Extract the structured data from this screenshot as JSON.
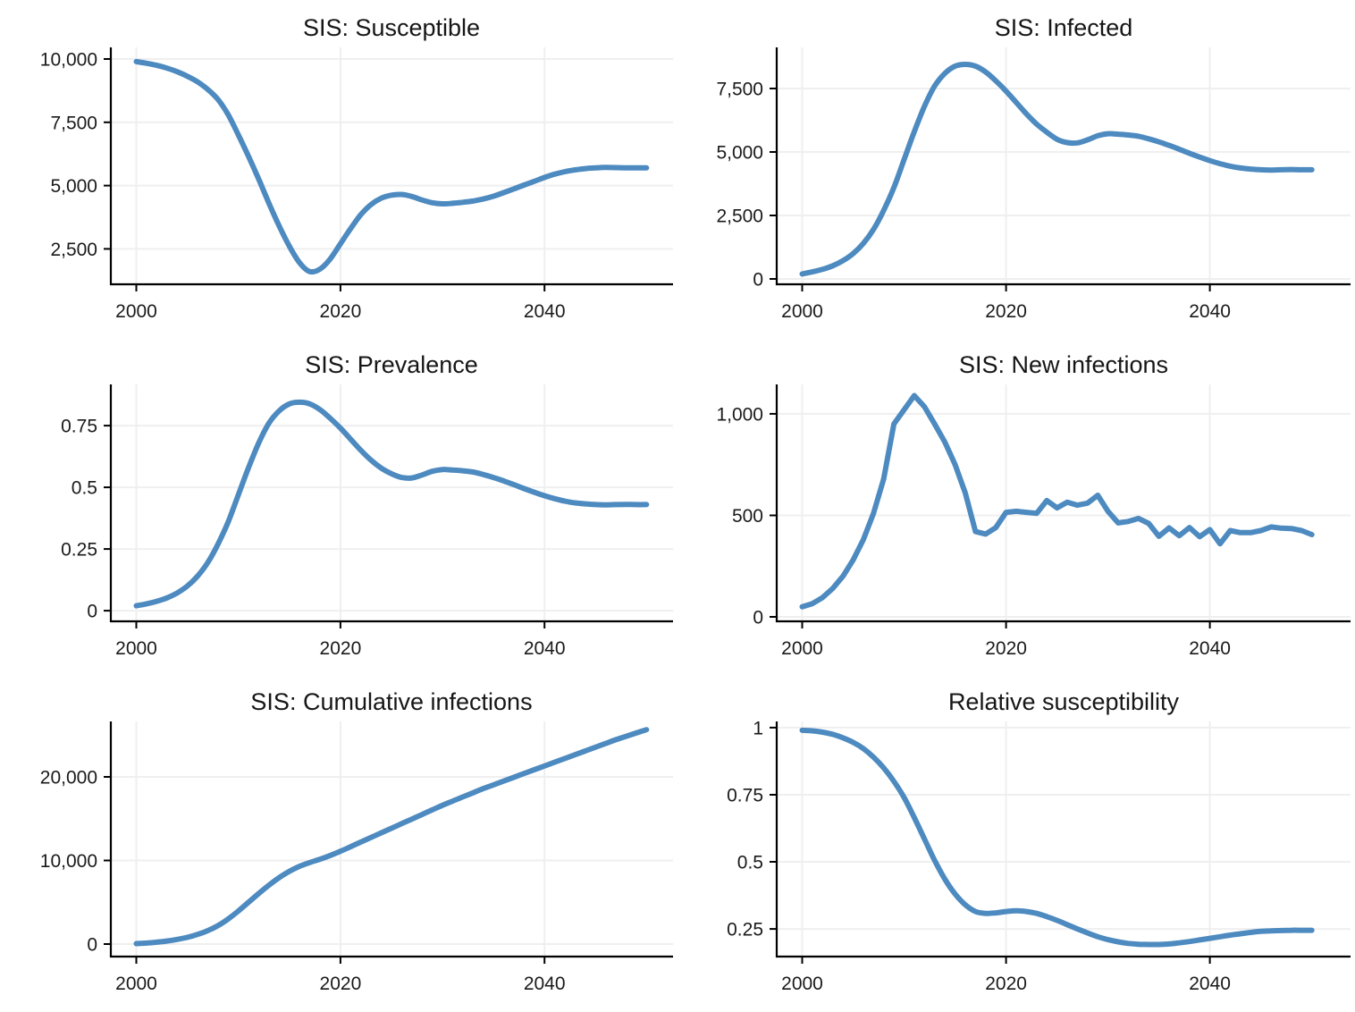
{
  "figure": {
    "background": "#ffffff",
    "accent_color": "#4d8ac0",
    "grid_color": "#efefef",
    "spine_color": "#000000",
    "text_color": "#161616"
  },
  "chart_data": [
    {
      "type": "line",
      "title": "SIS: Susceptible",
      "xlabel": "",
      "ylabel": "",
      "grid": true,
      "legend": "none",
      "smooth": true,
      "xlim": [
        1997.5,
        2052.6
      ],
      "ylim": [
        1100,
        10460
      ],
      "xticks": [
        {
          "value": 2000,
          "label": "2000"
        },
        {
          "value": 2020,
          "label": "2020"
        },
        {
          "value": 2040,
          "label": "2040"
        }
      ],
      "yticks": [
        {
          "value": 2500,
          "label": "2,500"
        },
        {
          "value": 5000,
          "label": "5,000"
        },
        {
          "value": 7500,
          "label": "7,500"
        },
        {
          "value": 10000,
          "label": "10,000"
        }
      ],
      "series": [
        {
          "name": "Susceptible",
          "x": [
            2000,
            2001,
            2002,
            2003,
            2004,
            2005,
            2006,
            2007,
            2008,
            2009,
            2010,
            2011,
            2012,
            2013,
            2014,
            2015,
            2016,
            2017,
            2018,
            2019,
            2020,
            2021,
            2022,
            2023,
            2024,
            2025,
            2026,
            2027,
            2028,
            2029,
            2030,
            2031,
            2032,
            2033,
            2034,
            2035,
            2036,
            2037,
            2038,
            2039,
            2040,
            2041,
            2042,
            2043,
            2044,
            2045,
            2046,
            2047,
            2048,
            2049,
            2050
          ],
          "y": [
            9900,
            9830,
            9750,
            9640,
            9500,
            9320,
            9100,
            8800,
            8400,
            7800,
            7000,
            6150,
            5250,
            4300,
            3400,
            2600,
            1950,
            1600,
            1700,
            2100,
            2700,
            3300,
            3850,
            4250,
            4500,
            4620,
            4650,
            4570,
            4430,
            4320,
            4280,
            4300,
            4340,
            4390,
            4470,
            4580,
            4720,
            4870,
            5020,
            5170,
            5320,
            5450,
            5550,
            5620,
            5670,
            5700,
            5720,
            5710,
            5700,
            5700,
            5700
          ]
        }
      ]
    },
    {
      "type": "line",
      "title": "SIS: Infected",
      "xlabel": "",
      "ylabel": "",
      "grid": true,
      "legend": "none",
      "smooth": true,
      "xlim": [
        1997.5,
        2053.8
      ],
      "ylim": [
        -210,
        9120
      ],
      "xticks": [
        {
          "value": 2000,
          "label": "2000"
        },
        {
          "value": 2020,
          "label": "2020"
        },
        {
          "value": 2040,
          "label": "2040"
        }
      ],
      "yticks": [
        {
          "value": 0,
          "label": "0"
        },
        {
          "value": 2500,
          "label": "2,500"
        },
        {
          "value": 5000,
          "label": "5,000"
        },
        {
          "value": 7500,
          "label": "7,500"
        }
      ],
      "series": [
        {
          "name": "Infected",
          "x": [
            2000,
            2001,
            2002,
            2003,
            2004,
            2005,
            2006,
            2007,
            2008,
            2009,
            2010,
            2011,
            2012,
            2013,
            2014,
            2015,
            2016,
            2017,
            2018,
            2019,
            2020,
            2021,
            2022,
            2023,
            2024,
            2025,
            2026,
            2027,
            2028,
            2029,
            2030,
            2031,
            2032,
            2033,
            2034,
            2035,
            2036,
            2037,
            2038,
            2039,
            2040,
            2041,
            2042,
            2043,
            2044,
            2045,
            2046,
            2047,
            2048,
            2049,
            2050
          ],
          "y": [
            200,
            280,
            380,
            520,
            720,
            1000,
            1400,
            1950,
            2700,
            3600,
            4700,
            5800,
            6800,
            7600,
            8100,
            8380,
            8450,
            8380,
            8150,
            7800,
            7400,
            6950,
            6500,
            6100,
            5780,
            5500,
            5370,
            5360,
            5480,
            5640,
            5720,
            5700,
            5670,
            5620,
            5520,
            5400,
            5260,
            5110,
            4950,
            4800,
            4660,
            4540,
            4440,
            4370,
            4330,
            4300,
            4290,
            4300,
            4310,
            4300,
            4300
          ]
        }
      ]
    },
    {
      "type": "line",
      "title": "SIS: Prevalence",
      "xlabel": "",
      "ylabel": "",
      "grid": true,
      "legend": "none",
      "smooth": true,
      "xlim": [
        1997.5,
        2052.6
      ],
      "ylim": [
        -0.043,
        0.917
      ],
      "xticks": [
        {
          "value": 2000,
          "label": "2000"
        },
        {
          "value": 2020,
          "label": "2020"
        },
        {
          "value": 2040,
          "label": "2040"
        }
      ],
      "yticks": [
        {
          "value": 0,
          "label": "0"
        },
        {
          "value": 0.25,
          "label": "0.25"
        },
        {
          "value": 0.5,
          "label": "0.5"
        },
        {
          "value": 0.75,
          "label": "0.75"
        }
      ],
      "series": [
        {
          "name": "Prevalence",
          "x": [
            2000,
            2001,
            2002,
            2003,
            2004,
            2005,
            2006,
            2007,
            2008,
            2009,
            2010,
            2011,
            2012,
            2013,
            2014,
            2015,
            2016,
            2017,
            2018,
            2019,
            2020,
            2021,
            2022,
            2023,
            2024,
            2025,
            2026,
            2027,
            2028,
            2029,
            2030,
            2031,
            2032,
            2033,
            2034,
            2035,
            2036,
            2037,
            2038,
            2039,
            2040,
            2041,
            2042,
            2043,
            2044,
            2045,
            2046,
            2047,
            2048,
            2049,
            2050
          ],
          "y": [
            0.02,
            0.028,
            0.038,
            0.052,
            0.072,
            0.1,
            0.14,
            0.195,
            0.27,
            0.36,
            0.47,
            0.58,
            0.68,
            0.76,
            0.81,
            0.838,
            0.845,
            0.838,
            0.815,
            0.78,
            0.74,
            0.695,
            0.65,
            0.61,
            0.578,
            0.555,
            0.54,
            0.538,
            0.55,
            0.565,
            0.572,
            0.57,
            0.567,
            0.562,
            0.552,
            0.54,
            0.526,
            0.511,
            0.495,
            0.48,
            0.466,
            0.454,
            0.444,
            0.437,
            0.433,
            0.43,
            0.429,
            0.43,
            0.431,
            0.43,
            0.43
          ]
        }
      ]
    },
    {
      "type": "line",
      "title": "SIS: New infections",
      "xlabel": "",
      "ylabel": "",
      "grid": true,
      "legend": "none",
      "smooth": false,
      "xlim": [
        1997.5,
        2053.8
      ],
      "ylim": [
        -22,
        1145
      ],
      "xticks": [
        {
          "value": 2000,
          "label": "2000"
        },
        {
          "value": 2020,
          "label": "2020"
        },
        {
          "value": 2040,
          "label": "2040"
        }
      ],
      "yticks": [
        {
          "value": 0,
          "label": "0"
        },
        {
          "value": 500,
          "label": "500"
        },
        {
          "value": 1000,
          "label": "1,000"
        }
      ],
      "series": [
        {
          "name": "New infections",
          "x": [
            2000,
            2001,
            2002,
            2003,
            2004,
            2005,
            2006,
            2007,
            2008,
            2009,
            2010,
            2011,
            2012,
            2013,
            2014,
            2015,
            2016,
            2017,
            2018,
            2019,
            2020,
            2021,
            2022,
            2023,
            2024,
            2025,
            2026,
            2027,
            2028,
            2029,
            2030,
            2031,
            2032,
            2033,
            2034,
            2035,
            2036,
            2037,
            2038,
            2039,
            2040,
            2041,
            2042,
            2043,
            2044,
            2045,
            2046,
            2047,
            2048,
            2049,
            2050
          ],
          "y": [
            50,
            65,
            95,
            140,
            200,
            280,
            380,
            510,
            680,
            950,
            1020,
            1090,
            1035,
            950,
            860,
            750,
            610,
            420,
            408,
            440,
            515,
            520,
            515,
            510,
            573,
            537,
            565,
            550,
            560,
            599,
            520,
            463,
            470,
            485,
            460,
            397,
            438,
            400,
            440,
            395,
            430,
            360,
            425,
            415,
            415,
            425,
            443,
            437,
            435,
            425,
            405
          ]
        }
      ]
    },
    {
      "type": "line",
      "title": "SIS: Cumulative infections",
      "xlabel": "",
      "ylabel": "",
      "grid": true,
      "legend": "none",
      "smooth": true,
      "xlim": [
        1997.5,
        2052.6
      ],
      "ylim": [
        -1500,
        26630
      ],
      "xticks": [
        {
          "value": 2000,
          "label": "2000"
        },
        {
          "value": 2020,
          "label": "2020"
        },
        {
          "value": 2040,
          "label": "2040"
        }
      ],
      "yticks": [
        {
          "value": 0,
          "label": "0"
        },
        {
          "value": 10000,
          "label": "10,000"
        },
        {
          "value": 20000,
          "label": "20,000"
        }
      ],
      "series": [
        {
          "name": "Cumulative infections",
          "x": [
            2000,
            2001,
            2002,
            2003,
            2004,
            2005,
            2006,
            2007,
            2008,
            2009,
            2010,
            2011,
            2012,
            2013,
            2014,
            2015,
            2016,
            2017,
            2018,
            2019,
            2020,
            2021,
            2022,
            2023,
            2024,
            2025,
            2026,
            2027,
            2028,
            2029,
            2030,
            2031,
            2032,
            2033,
            2034,
            2035,
            2036,
            2037,
            2038,
            2039,
            2040,
            2041,
            2042,
            2043,
            2044,
            2045,
            2046,
            2047,
            2048,
            2049,
            2050
          ],
          "y": [
            50,
            120,
            220,
            360,
            550,
            800,
            1150,
            1600,
            2200,
            3000,
            3950,
            5000,
            6050,
            7050,
            7950,
            8700,
            9300,
            9750,
            10150,
            10600,
            11100,
            11650,
            12200,
            12750,
            13300,
            13850,
            14400,
            14950,
            15500,
            16050,
            16600,
            17100,
            17600,
            18100,
            18600,
            19050,
            19500,
            19950,
            20400,
            20850,
            21300,
            21750,
            22200,
            22650,
            23100,
            23550,
            24000,
            24450,
            24850,
            25250,
            25650
          ]
        }
      ]
    },
    {
      "type": "line",
      "title": "Relative susceptibility",
      "xlabel": "",
      "ylabel": "",
      "grid": true,
      "legend": "none",
      "smooth": true,
      "xlim": [
        1997.5,
        2053.8
      ],
      "ylim": [
        0.147,
        1.023
      ],
      "xticks": [
        {
          "value": 2000,
          "label": "2000"
        },
        {
          "value": 2020,
          "label": "2020"
        },
        {
          "value": 2040,
          "label": "2040"
        }
      ],
      "yticks": [
        {
          "value": 0.25,
          "label": "0.25"
        },
        {
          "value": 0.5,
          "label": "0.5"
        },
        {
          "value": 0.75,
          "label": "0.75"
        },
        {
          "value": 1,
          "label": "1"
        }
      ],
      "series": [
        {
          "name": "Relative susceptibility",
          "x": [
            2000,
            2001,
            2002,
            2003,
            2004,
            2005,
            2006,
            2007,
            2008,
            2009,
            2010,
            2011,
            2012,
            2013,
            2014,
            2015,
            2016,
            2017,
            2018,
            2019,
            2020,
            2021,
            2022,
            2023,
            2024,
            2025,
            2026,
            2027,
            2028,
            2029,
            2030,
            2031,
            2032,
            2033,
            2034,
            2035,
            2036,
            2037,
            2038,
            2039,
            2040,
            2041,
            2042,
            2043,
            2044,
            2045,
            2046,
            2047,
            2048,
            2049,
            2050
          ],
          "y": [
            0.99,
            0.988,
            0.983,
            0.975,
            0.962,
            0.945,
            0.922,
            0.89,
            0.85,
            0.8,
            0.74,
            0.665,
            0.585,
            0.505,
            0.435,
            0.38,
            0.34,
            0.315,
            0.308,
            0.31,
            0.315,
            0.318,
            0.315,
            0.308,
            0.296,
            0.282,
            0.266,
            0.25,
            0.235,
            0.221,
            0.21,
            0.202,
            0.196,
            0.193,
            0.192,
            0.192,
            0.194,
            0.198,
            0.203,
            0.209,
            0.215,
            0.221,
            0.227,
            0.232,
            0.237,
            0.241,
            0.243,
            0.244,
            0.245,
            0.245,
            0.245
          ]
        }
      ]
    }
  ]
}
